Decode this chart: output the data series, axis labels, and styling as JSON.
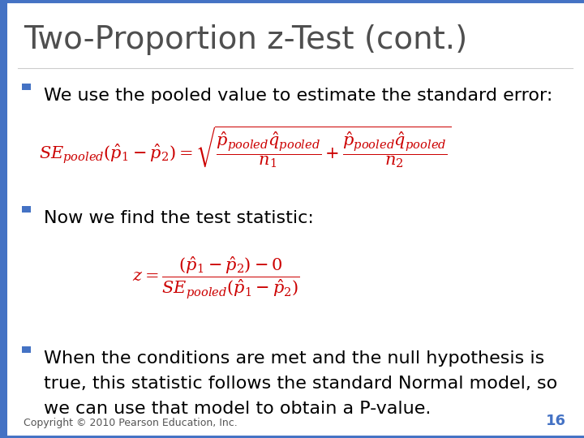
{
  "title": "Two-Proportion z-Test (cont.)",
  "title_color": "#4F4F4F",
  "title_fontsize": 28,
  "background_color": "#FFFFFF",
  "bullet_color": "#4472C4",
  "bullet1": "We use the pooled value to estimate the standard error:",
  "bullet2": "Now we find the test statistic:",
  "bullet3_line1": "When the conditions are met and the null hypothesis is",
  "bullet3_line2": "true, this statistic follows the standard Normal model, so",
  "bullet3_line3": "we can use that model to obtain a P-value.",
  "formula1": "$SE_{pooled}\\left(\\hat{p}_1 - \\hat{p}_2\\right) = \\sqrt{\\dfrac{\\hat{p}_{pooled}\\hat{q}_{pooled}}{n_1} + \\dfrac{\\hat{p}_{pooled}\\hat{q}_{pooled}}{n_2}}$",
  "formula2": "$z = \\dfrac{\\left(\\hat{p}_1 - \\hat{p}_2\\right) - 0}{SE_{pooled}\\left(\\hat{p}_1 - \\hat{p}_2\\right)}$",
  "formula_color": "#CC0000",
  "text_color": "#000000",
  "copyright": "Copyright © 2010 Pearson Education, Inc.",
  "page_num": "16",
  "font_size_bullet": 16,
  "font_size_formula": 15,
  "font_size_copyright": 9
}
